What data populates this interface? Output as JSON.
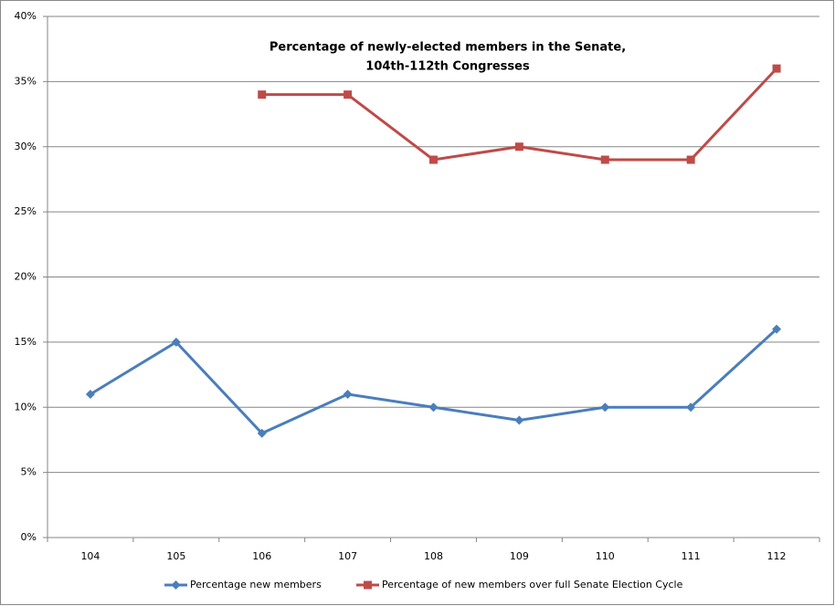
{
  "chart_data": {
    "type": "line",
    "title": [
      "Percentage of newly-elected members in the Senate,",
      "104th-112th Congresses"
    ],
    "categories": [
      "104",
      "105",
      "106",
      "107",
      "108",
      "109",
      "110",
      "111",
      "112"
    ],
    "series": [
      {
        "name": "Percentage new members",
        "color": "#4a7ebb",
        "marker": "diamond",
        "values": [
          11,
          15,
          8,
          11,
          10,
          9,
          10,
          10,
          16
        ]
      },
      {
        "name": "Percentage of new members over full Senate Election Cycle",
        "color": "#be4b48",
        "marker": "square",
        "values": [
          null,
          null,
          34,
          34,
          29,
          30,
          29,
          29,
          36
        ]
      }
    ],
    "ylim": [
      0,
      40
    ],
    "yticks": [
      {
        "value": 0,
        "label": "0%"
      },
      {
        "value": 5,
        "label": "5%"
      },
      {
        "value": 10,
        "label": "10%"
      },
      {
        "value": 15,
        "label": "15%"
      },
      {
        "value": 20,
        "label": "20%"
      },
      {
        "value": 25,
        "label": "25%"
      },
      {
        "value": 30,
        "label": "30%"
      },
      {
        "value": 35,
        "label": "35%"
      },
      {
        "value": 40,
        "label": "40%"
      }
    ],
    "grid": true,
    "legend": "bottom"
  }
}
